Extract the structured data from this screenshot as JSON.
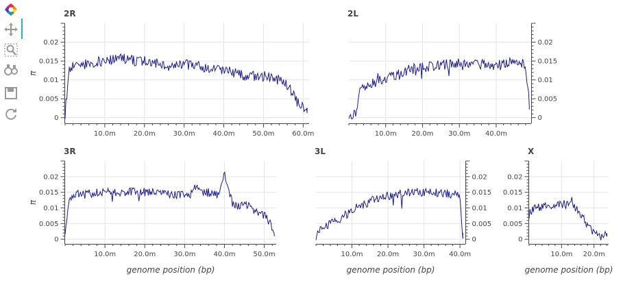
{
  "toolbar": {
    "tools": [
      {
        "name": "bokeh-logo-icon"
      },
      {
        "name": "pan-icon"
      },
      {
        "name": "box-zoom-icon"
      },
      {
        "name": "wheel-zoom-icon"
      },
      {
        "name": "save-icon"
      },
      {
        "name": "reset-icon"
      }
    ]
  },
  "colors": {
    "line": "#1a1a8c",
    "grid": "#e5e5e5",
    "axis": "#444444"
  },
  "chart_data": [
    {
      "id": "2R",
      "title": "2R",
      "type": "line",
      "xmax": 61.5,
      "ylim": [
        -0.0015,
        0.025
      ],
      "xticks": [
        "10.0m",
        "20.0m",
        "30.0m",
        "40.0m",
        "50.0m",
        "60.0m"
      ],
      "yticks": [
        "0",
        "0.005",
        "0.01",
        "0.015",
        "0.02"
      ],
      "ylabel": "π",
      "xlabel": "",
      "yaxis_side": "left",
      "x": [
        0,
        1,
        2,
        4,
        6,
        8,
        10,
        12,
        14,
        16,
        18,
        20,
        22,
        24,
        26,
        28,
        30,
        32,
        34,
        36,
        38,
        40,
        42,
        44,
        46,
        48,
        50,
        52,
        54,
        55,
        56,
        57,
        58,
        59,
        60,
        61
      ],
      "y": [
        0.001,
        0.013,
        0.0135,
        0.014,
        0.0145,
        0.0148,
        0.015,
        0.0155,
        0.016,
        0.0155,
        0.015,
        0.015,
        0.0145,
        0.014,
        0.0138,
        0.014,
        0.0142,
        0.0138,
        0.0135,
        0.013,
        0.013,
        0.0125,
        0.012,
        0.0115,
        0.011,
        0.0112,
        0.011,
        0.0105,
        0.01,
        0.0095,
        0.0085,
        0.007,
        0.005,
        0.0035,
        0.0025,
        0.002
      ]
    },
    {
      "id": "2L",
      "title": "2L",
      "type": "line",
      "xmax": 49.5,
      "ylim": [
        -0.0015,
        0.025
      ],
      "xticks": [
        "10.0m",
        "20.0m",
        "30.0m",
        "40.0m"
      ],
      "yticks": [
        "0",
        "0.005",
        "0.01",
        "0.015",
        "0.02"
      ],
      "ylabel": "",
      "xlabel": "",
      "yaxis_side": "right",
      "x": [
        0,
        1,
        2,
        3,
        4,
        5,
        6,
        8,
        10,
        12,
        14,
        16,
        18,
        20,
        22,
        24,
        26,
        28,
        30,
        32,
        34,
        36,
        38,
        40,
        42,
        44,
        46,
        47,
        48,
        49
      ],
      "y": [
        0.0005,
        0.0005,
        0.0008,
        0.007,
        0.008,
        0.0085,
        0.009,
        0.0095,
        0.0105,
        0.011,
        0.0115,
        0.0125,
        0.013,
        0.0135,
        0.0135,
        0.0138,
        0.014,
        0.0142,
        0.0148,
        0.0148,
        0.0145,
        0.0142,
        0.0138,
        0.0142,
        0.0145,
        0.015,
        0.015,
        0.0145,
        0.014,
        0.003
      ]
    },
    {
      "id": "3R",
      "title": "3R",
      "type": "line",
      "xmax": 53,
      "ylim": [
        -0.0015,
        0.025
      ],
      "xticks": [
        "10.0m",
        "20.0m",
        "30.0m",
        "40.0m",
        "50.0m"
      ],
      "yticks": [
        "0",
        "0.005",
        "0.01",
        "0.015",
        "0.02"
      ],
      "ylabel": "π",
      "xlabel": "genome position (bp)",
      "yaxis_side": "left",
      "x": [
        0,
        1,
        2,
        4,
        6,
        8,
        10,
        12,
        14,
        16,
        18,
        20,
        22,
        24,
        26,
        28,
        30,
        32,
        33,
        34,
        36,
        38,
        39,
        40,
        41,
        42,
        43,
        44,
        46,
        48,
        50,
        51,
        52,
        52.5
      ],
      "y": [
        0.001,
        0.013,
        0.0145,
        0.0142,
        0.0145,
        0.0148,
        0.015,
        0.0148,
        0.015,
        0.015,
        0.0155,
        0.015,
        0.015,
        0.0148,
        0.0145,
        0.0142,
        0.014,
        0.0145,
        0.018,
        0.0145,
        0.015,
        0.014,
        0.016,
        0.021,
        0.016,
        0.0115,
        0.0105,
        0.0108,
        0.0105,
        0.0085,
        0.0075,
        0.007,
        0.0025,
        0.002
      ]
    },
    {
      "id": "3L",
      "title": "3L",
      "type": "line",
      "xmax": 41.5,
      "ylim": [
        -0.0015,
        0.025
      ],
      "xticks": [
        "10.0m",
        "20.0m",
        "30.0m",
        "40.0m"
      ],
      "yticks": [
        "0",
        "0.005",
        "0.01",
        "0.015",
        "0.02"
      ],
      "ylabel": "",
      "xlabel": "genome position (bp)",
      "yaxis_side": "right",
      "x": [
        0,
        1,
        2,
        4,
        6,
        8,
        10,
        12,
        14,
        16,
        18,
        20,
        22,
        24,
        26,
        28,
        30,
        32,
        34,
        36,
        38,
        39,
        40,
        40.8
      ],
      "y": [
        0.001,
        0.003,
        0.004,
        0.005,
        0.006,
        0.0075,
        0.009,
        0.0105,
        0.0115,
        0.0125,
        0.0135,
        0.014,
        0.0142,
        0.0145,
        0.015,
        0.0152,
        0.015,
        0.0148,
        0.0148,
        0.0145,
        0.0145,
        0.0142,
        0.013,
        0.001
      ]
    },
    {
      "id": "X",
      "title": "X",
      "type": "line",
      "xmax": 24.5,
      "ylim": [
        -0.0015,
        0.025
      ],
      "xticks": [
        "10.0m",
        "20.0m"
      ],
      "yticks": [
        "0",
        "0.005",
        "0.01",
        "0.015",
        "0.02"
      ],
      "ylabel": "",
      "xlabel": "genome position (bp)",
      "yaxis_side": "left",
      "x": [
        0,
        1,
        2,
        4,
        6,
        8,
        10,
        12,
        14,
        15,
        16,
        17,
        18,
        19,
        20,
        21,
        22,
        23,
        24
      ],
      "y": [
        0.008,
        0.0095,
        0.0098,
        0.0102,
        0.0105,
        0.0108,
        0.0112,
        0.011,
        0.0105,
        0.0095,
        0.008,
        0.006,
        0.0045,
        0.003,
        0.0025,
        0.0015,
        0.001,
        0.0015,
        0.001
      ]
    }
  ]
}
